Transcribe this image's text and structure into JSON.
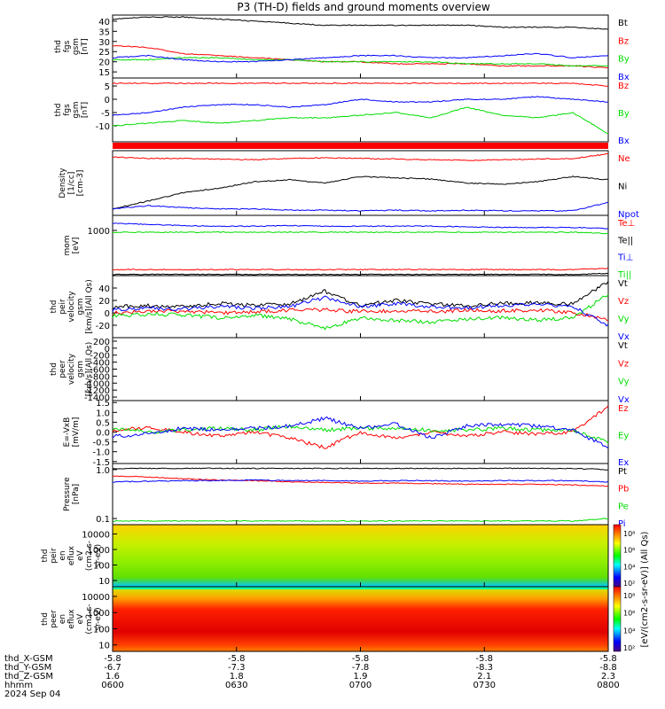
{
  "title": "P3 (TH-D) fields and ground moments overview",
  "colors": {
    "black": "#000000",
    "red": "#ff0000",
    "green": "#00dd00",
    "blue": "#0000ff"
  },
  "panels": [
    {
      "id": "fgs_mag",
      "ylabel": [
        "thd",
        "fgs",
        "gsm",
        "[nT]"
      ],
      "ylim": [
        12,
        43
      ],
      "ticks": [
        "15",
        "20",
        "25",
        "30",
        "35",
        "40"
      ],
      "tickvals": [
        15,
        20,
        25,
        30,
        35,
        40
      ],
      "legend": [
        "Bt",
        "Bz",
        "By",
        "Bx"
      ],
      "legendColors": [
        "#000000",
        "#ff0000",
        "#00dd00",
        "#0000ff"
      ],
      "series": [
        {
          "name": "Bt",
          "color": "#000000",
          "values": [
            41,
            42,
            42,
            41,
            40,
            39,
            38,
            38,
            38,
            38,
            38,
            37,
            37,
            37,
            36
          ]
        },
        {
          "name": "Bz",
          "color": "#ff0000",
          "values": [
            28,
            27,
            24,
            23,
            22,
            21,
            20,
            20,
            19,
            19,
            19,
            18,
            18,
            18,
            17
          ]
        },
        {
          "name": "By",
          "color": "#00dd00",
          "values": [
            21,
            21,
            22,
            22,
            21,
            21,
            20,
            20,
            20,
            20,
            19,
            19,
            19,
            18,
            18
          ]
        },
        {
          "name": "Bx",
          "color": "#0000ff",
          "values": [
            22,
            23,
            21,
            20,
            20,
            21,
            22,
            23,
            23,
            22,
            22,
            23,
            24,
            22,
            23
          ]
        }
      ]
    },
    {
      "id": "fgs_comp",
      "ylabel": [
        "thd",
        "fgs",
        "gsm",
        "[nT]"
      ],
      "ylim": [
        -16,
        8
      ],
      "ticks": [
        "5",
        "0",
        "-5",
        "-10"
      ],
      "tickvals": [
        5,
        0,
        -5,
        -10
      ],
      "legend": [
        "Bz",
        "By",
        "Bx"
      ],
      "legendColors": [
        "#ff0000",
        "#00dd00",
        "#0000ff"
      ],
      "series": [
        {
          "name": "Bz",
          "color": "#ff0000",
          "values": [
            6,
            6,
            6,
            6,
            6,
            6,
            6,
            6,
            6,
            6,
            6,
            6,
            6,
            6,
            5
          ]
        },
        {
          "name": "By",
          "color": "#0000ff",
          "values": [
            -6,
            -5,
            -3,
            -2,
            -2,
            -3,
            -2,
            0,
            -1,
            -1,
            0,
            0,
            1,
            0,
            -1
          ]
        },
        {
          "name": "Bx",
          "color": "#00dd00",
          "values": [
            -10,
            -9,
            -8,
            -9,
            -8,
            -7,
            -7,
            -6,
            -5,
            -7,
            -3,
            -6,
            -7,
            -5,
            -13
          ]
        }
      ]
    },
    {
      "id": "density",
      "ylabel": [
        "Density",
        "[1/cc]",
        "[cm-3]"
      ],
      "ylim": [
        0,
        1
      ],
      "ticks": [],
      "tickvals": [],
      "legend": [
        "Ne",
        "Ni",
        "Npot"
      ],
      "legendColors": [
        "#ff0000",
        "#000000",
        "#0000ff"
      ],
      "series": [
        {
          "name": "Ne",
          "color": "#ff0000",
          "values": [
            0.9,
            0.88,
            0.88,
            0.87,
            0.86,
            0.88,
            0.89,
            0.88,
            0.87,
            0.86,
            0.85,
            0.86,
            0.87,
            0.88,
            0.95
          ]
        },
        {
          "name": "Ni",
          "color": "#000000",
          "values": [
            0.1,
            0.22,
            0.35,
            0.42,
            0.52,
            0.55,
            0.5,
            0.6,
            0.58,
            0.56,
            0.5,
            0.48,
            0.52,
            0.6,
            0.55
          ]
        },
        {
          "name": "Npot",
          "color": "#0000ff",
          "values": [
            0.1,
            0.15,
            0.12,
            0.1,
            0.1,
            0.08,
            0.08,
            0.07,
            0.08,
            0.07,
            0.08,
            0.07,
            0.07,
            0.07,
            0.2
          ]
        }
      ]
    },
    {
      "id": "mom_temp",
      "ylabel": [
        "mom",
        "[eV]"
      ],
      "ylim": [
        0,
        1
      ],
      "ticks": [
        "1000"
      ],
      "tickvals": [
        0.75
      ],
      "legend": [
        "Te⊥",
        "Te||",
        "Ti⊥",
        "Ti||"
      ],
      "legendColors": [
        "#ff0000",
        "#000000",
        "#0000ff",
        "#00dd00"
      ],
      "series": [
        {
          "name": "Ti⊥",
          "color": "#0000ff",
          "values": [
            0.87,
            0.85,
            0.83,
            0.82,
            0.82,
            0.83,
            0.82,
            0.82,
            0.82,
            0.82,
            0.81,
            0.8,
            0.8,
            0.8,
            0.78
          ]
        },
        {
          "name": "Ti||",
          "color": "#00dd00",
          "values": [
            0.72,
            0.72,
            0.72,
            0.72,
            0.72,
            0.72,
            0.72,
            0.72,
            0.72,
            0.72,
            0.72,
            0.72,
            0.72,
            0.72,
            0.7
          ]
        },
        {
          "name": "Te⊥",
          "color": "#ff0000",
          "values": [
            0.1,
            0.1,
            0.1,
            0.1,
            0.1,
            0.1,
            0.1,
            0.1,
            0.1,
            0.1,
            0.1,
            0.1,
            0.1,
            0.1,
            0.12
          ]
        },
        {
          "name": "Te||",
          "color": "#000000",
          "values": [
            0.02,
            0.02,
            0.02,
            0.02,
            0.02,
            0.02,
            0.02,
            0.02,
            0.02,
            0.02,
            0.02,
            0.02,
            0.02,
            0.02,
            0.04
          ]
        }
      ]
    },
    {
      "id": "peir_vel",
      "ylabel": [
        "thd",
        "peir",
        "velocity",
        "gsm",
        "[km/s](All Qs)"
      ],
      "ylim": [
        -40,
        60
      ],
      "ticks": [
        "40",
        "20",
        "0",
        "-20"
      ],
      "tickvals": [
        40,
        20,
        0,
        -20
      ],
      "legend": [
        "Vt",
        "Vz",
        "Vy",
        "Vx"
      ],
      "legendColors": [
        "#000000",
        "#ff0000",
        "#00dd00",
        "#0000ff"
      ],
      "series": [
        {
          "name": "Vt",
          "color": "#000000",
          "values": [
            10,
            12,
            10,
            15,
            12,
            14,
            35,
            12,
            20,
            14,
            12,
            15,
            16,
            14,
            50
          ]
        },
        {
          "name": "Vz",
          "color": "#ff0000",
          "values": [
            0,
            2,
            3,
            0,
            2,
            4,
            5,
            2,
            3,
            2,
            4,
            3,
            5,
            0,
            -10
          ]
        },
        {
          "name": "Vy",
          "color": "#00dd00",
          "values": [
            -5,
            -2,
            -3,
            -8,
            -4,
            -10,
            -25,
            -8,
            -12,
            -15,
            -10,
            -8,
            -12,
            -8,
            30
          ]
        },
        {
          "name": "Vx",
          "color": "#0000ff",
          "values": [
            5,
            8,
            6,
            10,
            8,
            10,
            25,
            10,
            15,
            10,
            8,
            12,
            14,
            10,
            -20
          ]
        }
      ]
    },
    {
      "id": "peer_vel",
      "ylabel": [
        "thd",
        "peer",
        "velocity",
        "gsm",
        "[km/s](All Qs)"
      ],
      "ylim": [
        -1500,
        300
      ],
      "ticks": [
        "200",
        "0",
        "-200",
        "-400",
        "-600",
        "-800",
        "-1000",
        "-1200",
        "-1400"
      ],
      "tickvals": [
        200,
        0,
        -200,
        -400,
        -600,
        -800,
        -1000,
        -1200,
        -1400
      ],
      "legend": [
        "Vt",
        "Vz",
        "Vy",
        "Vx"
      ],
      "legendColors": [
        "#000000",
        "#ff0000",
        "#00dd00",
        "#0000ff"
      ],
      "series": []
    },
    {
      "id": "efield",
      "ylabel": [
        "E=-VxB",
        "[mV/m]"
      ],
      "ylim": [
        -1.6,
        1.6
      ],
      "ticks": [
        "1.5",
        "1.0",
        "0.5",
        "0.0",
        "-0.5",
        "-1.0",
        "-1.5"
      ],
      "tickvals": [
        1.5,
        1,
        0.5,
        0,
        -0.5,
        -1,
        -1.5
      ],
      "legend": [
        "Ez",
        "Ey",
        "Ex"
      ],
      "legendColors": [
        "#ff0000",
        "#00dd00",
        "#0000ff"
      ],
      "series": [
        {
          "name": "Ez",
          "color": "#ff0000",
          "values": [
            0.1,
            0.2,
            0,
            -0.2,
            0,
            -0.3,
            -0.8,
            0,
            -0.3,
            0,
            -0.2,
            0,
            -0.1,
            0,
            1.3
          ]
        },
        {
          "name": "Ey",
          "color": "#00dd00",
          "values": [
            0.2,
            0,
            0.1,
            0.2,
            0.1,
            0.3,
            0.1,
            0.2,
            0.2,
            0.1,
            0.1,
            0.2,
            0.1,
            0.1,
            -0.5
          ]
        },
        {
          "name": "Ex",
          "color": "#0000ff",
          "values": [
            -0.2,
            -0.1,
            0.2,
            0.1,
            0.2,
            0.3,
            0.7,
            0.2,
            0.4,
            -0.3,
            0.3,
            0.4,
            0.3,
            0.1,
            -0.8
          ]
        }
      ]
    },
    {
      "id": "pressure",
      "ylabel": [
        "Pressure",
        "[nPa]"
      ],
      "ylim": [
        0,
        1
      ],
      "ticks": [
        "1.0",
        "0.1"
      ],
      "tickvals": [
        0.9,
        0.1
      ],
      "legend": [
        "Pt",
        "Pb",
        "Pe",
        "Pi"
      ],
      "legendColors": [
        "#000000",
        "#ff0000",
        "#00dd00",
        "#0000ff"
      ],
      "series": [
        {
          "name": "Pt",
          "color": "#000000",
          "values": [
            0.92,
            0.92,
            0.92,
            0.92,
            0.92,
            0.92,
            0.92,
            0.92,
            0.92,
            0.92,
            0.92,
            0.92,
            0.92,
            0.92,
            0.9
          ]
        },
        {
          "name": "Pb",
          "color": "#ff0000",
          "values": [
            0.8,
            0.78,
            0.75,
            0.73,
            0.72,
            0.7,
            0.69,
            0.68,
            0.68,
            0.67,
            0.66,
            0.66,
            0.66,
            0.65,
            0.63
          ]
        },
        {
          "name": "Pi",
          "color": "#0000ff",
          "values": [
            0.7,
            0.71,
            0.72,
            0.72,
            0.73,
            0.72,
            0.72,
            0.71,
            0.72,
            0.72,
            0.71,
            0.72,
            0.72,
            0.72,
            0.7
          ]
        },
        {
          "name": "Pe",
          "color": "#00dd00",
          "values": [
            0.06,
            0.06,
            0.06,
            0.06,
            0.06,
            0.06,
            0.06,
            0.06,
            0.06,
            0.06,
            0.06,
            0.06,
            0.06,
            0.06,
            0.1
          ]
        }
      ]
    },
    {
      "id": "peir_spec",
      "type": "heatmap",
      "ylabel": [
        "thd",
        "peir",
        "en",
        "eflux",
        "eV",
        "(cm2-s-",
        "sr-eV)"
      ],
      "ticks": [
        "10000",
        "1000",
        "100",
        "10"
      ],
      "tickvals": [
        0.85,
        0.6,
        0.35,
        0.1
      ],
      "legend": [],
      "legendColors": []
    },
    {
      "id": "peer_spec",
      "type": "heatmap",
      "ylabel": [
        "thd",
        "peer",
        "en",
        "eflux",
        "eV",
        "(cm2-s-",
        "sr-eV)"
      ],
      "ticks": [
        "10000",
        "1000",
        "100",
        "10"
      ],
      "tickvals": [
        0.85,
        0.6,
        0.35,
        0.1
      ],
      "legend": [],
      "legendColors": []
    }
  ],
  "chart_data": {
    "type": "line",
    "title": "P3 (TH-D) fields and ground moments overview",
    "x": [
      "0600",
      "0630",
      "0700",
      "0730",
      "0800"
    ],
    "colorbar": {
      "label": "[eV/(cm2-s-sr-eV)] (All Qs)",
      "ticks": [
        "10⁸",
        "10⁶",
        "10⁴",
        "10²"
      ]
    }
  },
  "footer": {
    "rows": [
      {
        "label": "thd_X-GSM",
        "values": [
          "-5.8",
          "-5.8",
          "-5.8",
          "-5.8",
          "-5.8"
        ]
      },
      {
        "label": "thd_Y-GSM",
        "values": [
          "-6.7",
          "-7.3",
          "-7.8",
          "-8.3",
          "-8.8"
        ]
      },
      {
        "label": "thd_Z-GSM",
        "values": [
          "1.6",
          "1.8",
          "1.9",
          "2.1",
          "2.3"
        ]
      },
      {
        "label": "hhmm",
        "values": [
          "0600",
          "0630",
          "0700",
          "0730",
          "0800"
        ]
      }
    ],
    "date": "2024 Sep 04"
  }
}
